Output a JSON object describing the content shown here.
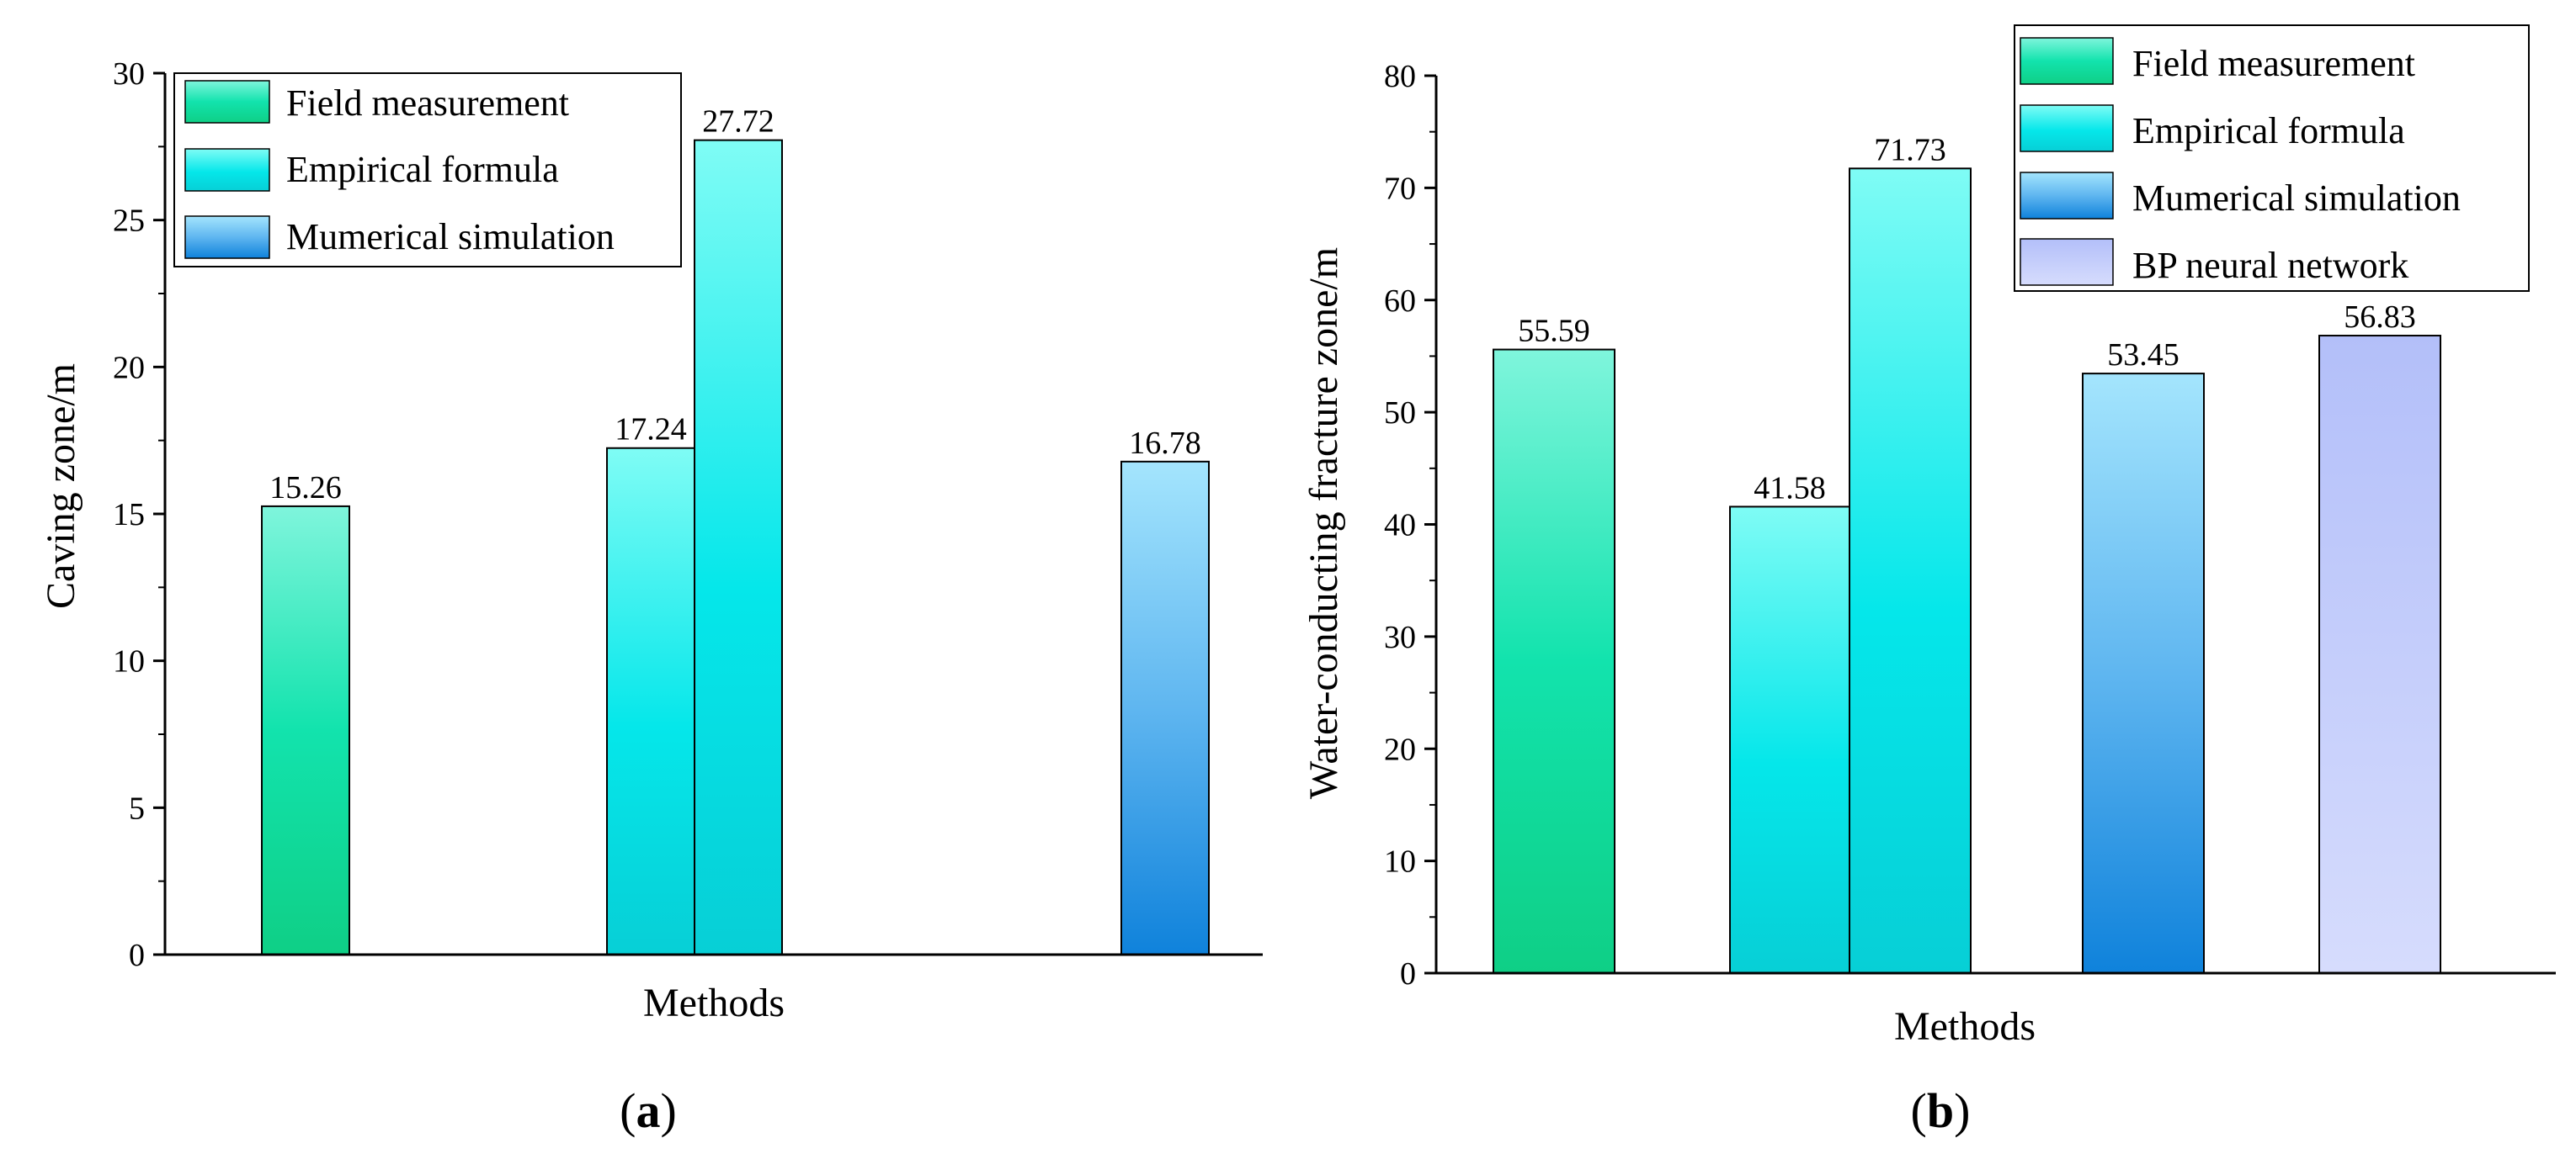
{
  "chart_data": [
    {
      "type": "bar",
      "panel_label": "a",
      "xlabel": "Methods",
      "ylabel": "Caving zone/m",
      "ylim": [
        0,
        30
      ],
      "yticks": [
        0,
        5,
        10,
        15,
        20,
        25,
        30
      ],
      "legend_position": "top-left",
      "series": [
        {
          "name": "Field measurement",
          "color_top": "#7ff5dc",
          "color_bottom": "#0fcf86"
        },
        {
          "name": "Empirical formula",
          "color_top": "#7ffcf5",
          "color_bottom": "#07cfd6"
        },
        {
          "name": "Mumerical simulation",
          "color_top": "#a4e5fd",
          "color_bottom": "#0f82db"
        }
      ],
      "bars": [
        {
          "series": "Field measurement",
          "value": 15.26,
          "label": "15.26"
        },
        {
          "series": "Empirical formula",
          "value": 17.24,
          "label": "17.24"
        },
        {
          "series": "Empirical formula",
          "value": 27.72,
          "label": "27.72"
        },
        {
          "series": "Mumerical simulation",
          "value": 16.78,
          "label": "16.78"
        }
      ]
    },
    {
      "type": "bar",
      "panel_label": "b",
      "xlabel": "Methods",
      "ylabel": "Water-conducting fracture zone/m",
      "ylim": [
        0,
        80
      ],
      "yticks": [
        0,
        10,
        20,
        30,
        40,
        50,
        60,
        70,
        80
      ],
      "legend_position": "top-right",
      "series": [
        {
          "name": "Field measurement",
          "color_top": "#7ff5dc",
          "color_bottom": "#0fcf86"
        },
        {
          "name": "Empirical formula",
          "color_top": "#7ffcf5",
          "color_bottom": "#07cfd6"
        },
        {
          "name": "Mumerical simulation",
          "color_top": "#a4e5fd",
          "color_bottom": "#0f82db"
        },
        {
          "name": "BP neural network",
          "color_top": "#b3bff9",
          "color_bottom": "#d6dcfd"
        }
      ],
      "bars": [
        {
          "series": "Field measurement",
          "value": 55.59,
          "label": "55.59"
        },
        {
          "series": "Empirical formula",
          "value": 41.58,
          "label": "41.58"
        },
        {
          "series": "Empirical formula",
          "value": 71.73,
          "label": "71.73"
        },
        {
          "series": "Mumerical simulation",
          "value": 53.45,
          "label": "53.45"
        },
        {
          "series": "BP neural network",
          "value": 56.83,
          "label": "56.83"
        }
      ]
    }
  ]
}
